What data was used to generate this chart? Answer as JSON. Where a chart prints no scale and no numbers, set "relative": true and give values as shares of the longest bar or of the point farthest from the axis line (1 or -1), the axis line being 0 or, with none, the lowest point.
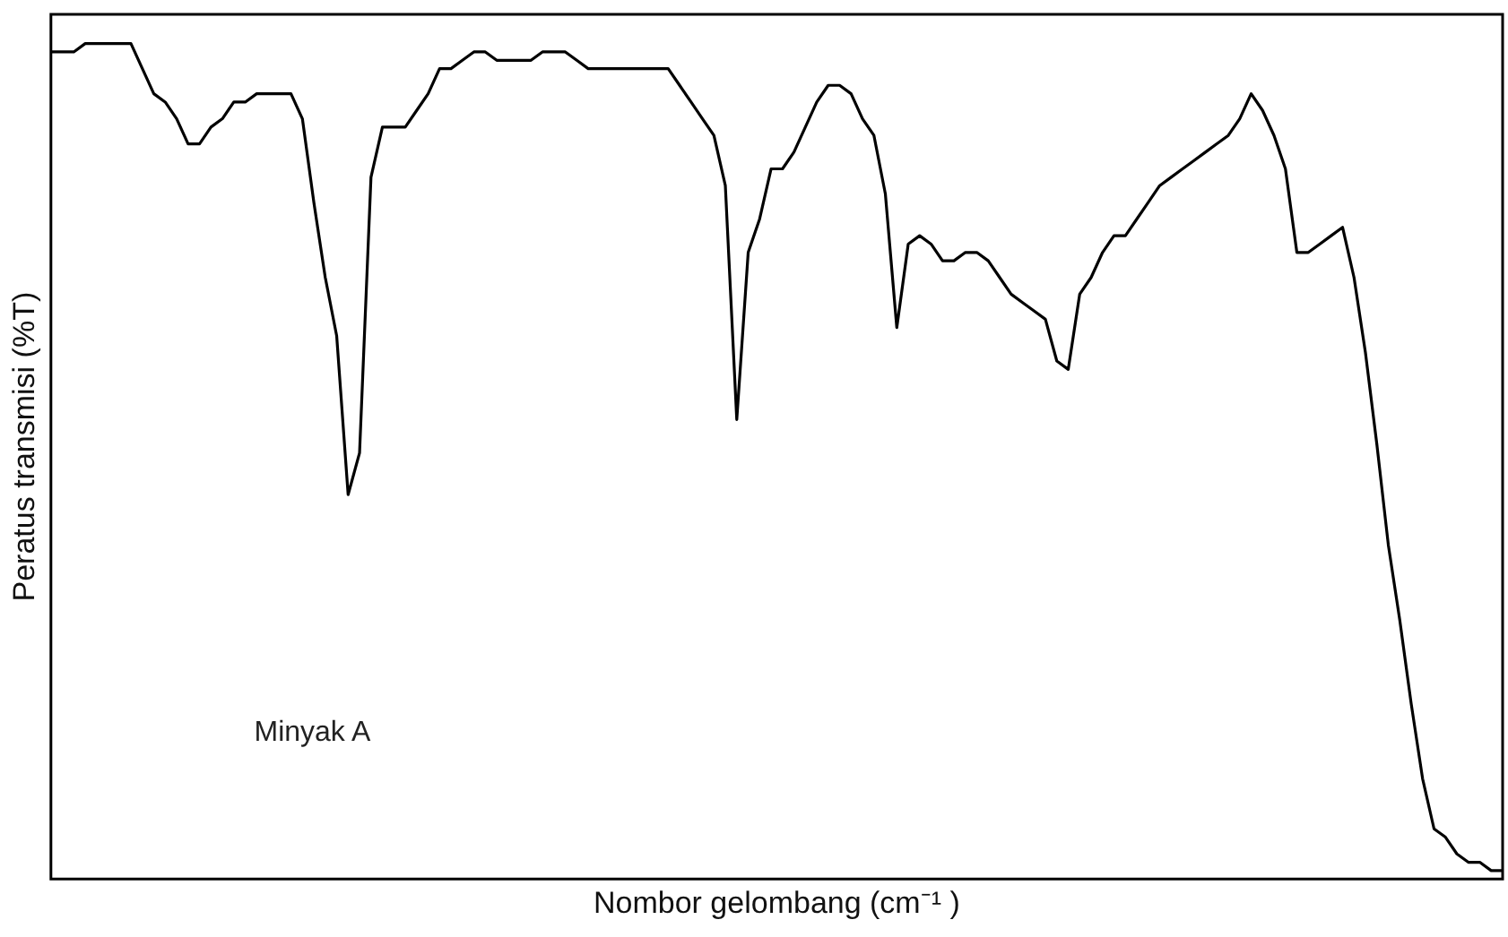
{
  "chart_data": {
    "type": "line",
    "relative": true,
    "xlabel": "Nombor gelombang (cm⁻¹ )",
    "ylabel": "Peratus transmisi (%T)",
    "annotations": [
      "Minyak A"
    ],
    "tick_labels": false,
    "grid": false,
    "legend": false,
    "marker": "none",
    "line_style": "solid",
    "categories": [
      null,
      null,
      null,
      null,
      null,
      null,
      null,
      null,
      null,
      null,
      null,
      null,
      null,
      null,
      null,
      null,
      null,
      null,
      null,
      null,
      null,
      null,
      null,
      null,
      null,
      null,
      null,
      null,
      null,
      null,
      null,
      null,
      null,
      null,
      null,
      null,
      null,
      null,
      null,
      null,
      null,
      null,
      null,
      null,
      null,
      null,
      null,
      null,
      null,
      null,
      null,
      null,
      null,
      null,
      null,
      null,
      null,
      null,
      null,
      null,
      null,
      null,
      null,
      null,
      null,
      null,
      null,
      null,
      null,
      null,
      null,
      null,
      null,
      null,
      null,
      null,
      null,
      null,
      null,
      null,
      null,
      null,
      null,
      null,
      null,
      null,
      null,
      null,
      null,
      null,
      null,
      null,
      null,
      null,
      null,
      null,
      null,
      null,
      null,
      null,
      null,
      null,
      null,
      null,
      null,
      null,
      null,
      null,
      null,
      null,
      null,
      null,
      null,
      null,
      null,
      null,
      null,
      null,
      null,
      null,
      null,
      null,
      null,
      null,
      null,
      null,
      null,
      null
    ],
    "series": [
      {
        "color": "#000000",
        "values": [
          0.99,
          0.99,
          0.99,
          1.0,
          1.0,
          1.0,
          1.0,
          1.0,
          0.97,
          0.94,
          0.93,
          0.91,
          0.88,
          0.88,
          0.9,
          0.91,
          0.93,
          0.93,
          0.94,
          0.94,
          0.94,
          0.94,
          0.91,
          0.81,
          0.72,
          0.65,
          0.46,
          0.51,
          0.84,
          0.9,
          0.9,
          0.9,
          0.92,
          0.94,
          0.97,
          0.97,
          0.98,
          0.99,
          0.99,
          0.98,
          0.98,
          0.98,
          0.98,
          0.99,
          0.99,
          0.99,
          0.98,
          0.97,
          0.97,
          0.97,
          0.97,
          0.97,
          0.97,
          0.97,
          0.97,
          0.95,
          0.93,
          0.91,
          0.89,
          0.83,
          0.55,
          0.75,
          0.79,
          0.85,
          0.85,
          0.87,
          0.9,
          0.93,
          0.95,
          0.95,
          0.94,
          0.91,
          0.89,
          0.82,
          0.66,
          0.76,
          0.77,
          0.76,
          0.74,
          0.74,
          0.75,
          0.75,
          0.74,
          0.72,
          0.7,
          0.69,
          0.68,
          0.67,
          0.62,
          0.61,
          0.7,
          0.72,
          0.75,
          0.77,
          0.77,
          0.79,
          0.81,
          0.83,
          0.84,
          0.85,
          0.86,
          0.87,
          0.88,
          0.89,
          0.91,
          0.94,
          0.92,
          0.89,
          0.85,
          0.75,
          0.75,
          0.76,
          0.77,
          0.78,
          0.72,
          0.63,
          0.52,
          0.4,
          0.31,
          0.21,
          0.12,
          0.06,
          0.05,
          0.03,
          0.02,
          0.02,
          0.01,
          0.01
        ]
      }
    ]
  }
}
